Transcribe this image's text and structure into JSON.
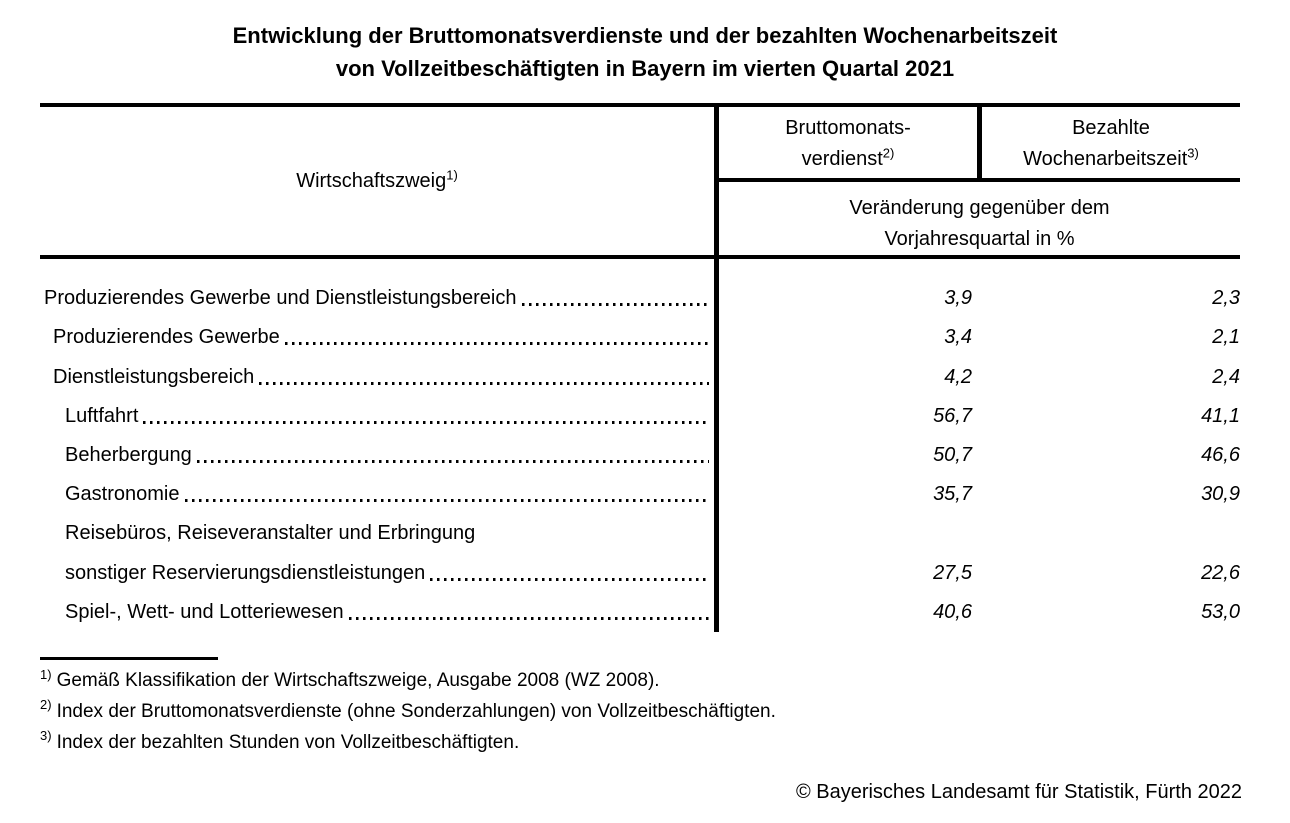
{
  "page": {
    "title_line1": "Entwicklung der Bruttomonatsverdienste und der bezahlten Wochenarbeitszeit",
    "title_line2": "von Vollzeitbeschäftigten in Bayern im vierten Quartal 2021",
    "copyright": "© Bayerisches Landesamt für Statistik, Fürth 2022",
    "text_color": "#000000",
    "background_color": "#ffffff"
  },
  "table": {
    "stub_header": {
      "label": "Wirtschaftszweig",
      "sup": "1)"
    },
    "columns": [
      {
        "line1": "Bruttomonats-",
        "line2": "verdienst",
        "sup": "2)"
      },
      {
        "line1": "Bezahlte",
        "line2": "Wochenarbeitszeit",
        "sup": "3)"
      }
    ],
    "subheader": {
      "line1": "Veränderung gegenüber dem",
      "line2": "Vorjahresquartal in %"
    },
    "rows": [
      {
        "label": "Produzierendes Gewerbe und Dienstleistungsbereich",
        "indent": 0,
        "verdienst": "3,9",
        "arbeitszeit": "2,3"
      },
      {
        "label": "Produzierendes Gewerbe",
        "indent": 1,
        "verdienst": "3,4",
        "arbeitszeit": "2,1"
      },
      {
        "label": "Dienstleistungsbereich",
        "indent": 1,
        "verdienst": "4,2",
        "arbeitszeit": "2,4"
      },
      {
        "label": "Luftfahrt",
        "indent": 2,
        "verdienst": "56,7",
        "arbeitszeit": "41,1"
      },
      {
        "label": "Beherbergung",
        "indent": 2,
        "verdienst": "50,7",
        "arbeitszeit": "46,6"
      },
      {
        "label": "Gastronomie",
        "indent": 2,
        "verdienst": "35,7",
        "arbeitszeit": "30,9"
      },
      {
        "label": "Reisebüros, Reiseveranstalter und Erbringung",
        "indent": 2,
        "verdienst": "",
        "arbeitszeit": ""
      },
      {
        "label": "sonstiger Reservierungsdienstleistungen",
        "indent": 2,
        "verdienst": "27,5",
        "arbeitszeit": "22,6"
      },
      {
        "label": "Spiel-, Wett- und Lotteriewesen",
        "indent": 2,
        "verdienst": "40,6",
        "arbeitszeit": "53,0"
      }
    ]
  },
  "footnotes": [
    {
      "marker": "1)",
      "text": "Gemäß Klassifikation der Wirtschaftszweige, Ausgabe 2008 (WZ 2008)."
    },
    {
      "marker": "2)",
      "text": "Index der Bruttomonatsverdienste (ohne Sonderzahlungen) von Vollzeitbeschäftigten."
    },
    {
      "marker": "3)",
      "text": "Index der bezahlten Stunden von Vollzeitbeschäftigten."
    }
  ]
}
